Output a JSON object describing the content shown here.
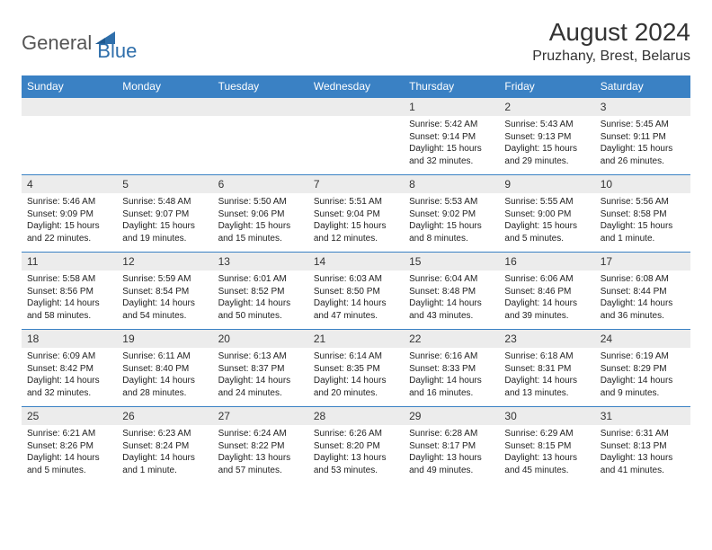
{
  "brand": {
    "part1": "General",
    "part2": "Blue"
  },
  "title": "August 2024",
  "location": "Pruzhany, Brest, Belarus",
  "colors": {
    "header_bg": "#3a81c4",
    "header_text": "#ffffff",
    "daynum_bg": "#ececec",
    "row_border": "#3a81c4",
    "logo_gray": "#555555",
    "logo_blue": "#2f6fab",
    "body_text": "#222222"
  },
  "columns": [
    "Sunday",
    "Monday",
    "Tuesday",
    "Wednesday",
    "Thursday",
    "Friday",
    "Saturday"
  ],
  "weeks": [
    [
      null,
      null,
      null,
      null,
      {
        "d": "1",
        "sr": "5:42 AM",
        "ss": "9:14 PM",
        "dl": "15 hours and 32 minutes."
      },
      {
        "d": "2",
        "sr": "5:43 AM",
        "ss": "9:13 PM",
        "dl": "15 hours and 29 minutes."
      },
      {
        "d": "3",
        "sr": "5:45 AM",
        "ss": "9:11 PM",
        "dl": "15 hours and 26 minutes."
      }
    ],
    [
      {
        "d": "4",
        "sr": "5:46 AM",
        "ss": "9:09 PM",
        "dl": "15 hours and 22 minutes."
      },
      {
        "d": "5",
        "sr": "5:48 AM",
        "ss": "9:07 PM",
        "dl": "15 hours and 19 minutes."
      },
      {
        "d": "6",
        "sr": "5:50 AM",
        "ss": "9:06 PM",
        "dl": "15 hours and 15 minutes."
      },
      {
        "d": "7",
        "sr": "5:51 AM",
        "ss": "9:04 PM",
        "dl": "15 hours and 12 minutes."
      },
      {
        "d": "8",
        "sr": "5:53 AM",
        "ss": "9:02 PM",
        "dl": "15 hours and 8 minutes."
      },
      {
        "d": "9",
        "sr": "5:55 AM",
        "ss": "9:00 PM",
        "dl": "15 hours and 5 minutes."
      },
      {
        "d": "10",
        "sr": "5:56 AM",
        "ss": "8:58 PM",
        "dl": "15 hours and 1 minute."
      }
    ],
    [
      {
        "d": "11",
        "sr": "5:58 AM",
        "ss": "8:56 PM",
        "dl": "14 hours and 58 minutes."
      },
      {
        "d": "12",
        "sr": "5:59 AM",
        "ss": "8:54 PM",
        "dl": "14 hours and 54 minutes."
      },
      {
        "d": "13",
        "sr": "6:01 AM",
        "ss": "8:52 PM",
        "dl": "14 hours and 50 minutes."
      },
      {
        "d": "14",
        "sr": "6:03 AM",
        "ss": "8:50 PM",
        "dl": "14 hours and 47 minutes."
      },
      {
        "d": "15",
        "sr": "6:04 AM",
        "ss": "8:48 PM",
        "dl": "14 hours and 43 minutes."
      },
      {
        "d": "16",
        "sr": "6:06 AM",
        "ss": "8:46 PM",
        "dl": "14 hours and 39 minutes."
      },
      {
        "d": "17",
        "sr": "6:08 AM",
        "ss": "8:44 PM",
        "dl": "14 hours and 36 minutes."
      }
    ],
    [
      {
        "d": "18",
        "sr": "6:09 AM",
        "ss": "8:42 PM",
        "dl": "14 hours and 32 minutes."
      },
      {
        "d": "19",
        "sr": "6:11 AM",
        "ss": "8:40 PM",
        "dl": "14 hours and 28 minutes."
      },
      {
        "d": "20",
        "sr": "6:13 AM",
        "ss": "8:37 PM",
        "dl": "14 hours and 24 minutes."
      },
      {
        "d": "21",
        "sr": "6:14 AM",
        "ss": "8:35 PM",
        "dl": "14 hours and 20 minutes."
      },
      {
        "d": "22",
        "sr": "6:16 AM",
        "ss": "8:33 PM",
        "dl": "14 hours and 16 minutes."
      },
      {
        "d": "23",
        "sr": "6:18 AM",
        "ss": "8:31 PM",
        "dl": "14 hours and 13 minutes."
      },
      {
        "d": "24",
        "sr": "6:19 AM",
        "ss": "8:29 PM",
        "dl": "14 hours and 9 minutes."
      }
    ],
    [
      {
        "d": "25",
        "sr": "6:21 AM",
        "ss": "8:26 PM",
        "dl": "14 hours and 5 minutes."
      },
      {
        "d": "26",
        "sr": "6:23 AM",
        "ss": "8:24 PM",
        "dl": "14 hours and 1 minute."
      },
      {
        "d": "27",
        "sr": "6:24 AM",
        "ss": "8:22 PM",
        "dl": "13 hours and 57 minutes."
      },
      {
        "d": "28",
        "sr": "6:26 AM",
        "ss": "8:20 PM",
        "dl": "13 hours and 53 minutes."
      },
      {
        "d": "29",
        "sr": "6:28 AM",
        "ss": "8:17 PM",
        "dl": "13 hours and 49 minutes."
      },
      {
        "d": "30",
        "sr": "6:29 AM",
        "ss": "8:15 PM",
        "dl": "13 hours and 45 minutes."
      },
      {
        "d": "31",
        "sr": "6:31 AM",
        "ss": "8:13 PM",
        "dl": "13 hours and 41 minutes."
      }
    ]
  ],
  "labels": {
    "sunrise": "Sunrise: ",
    "sunset": "Sunset: ",
    "daylight": "Daylight: "
  }
}
